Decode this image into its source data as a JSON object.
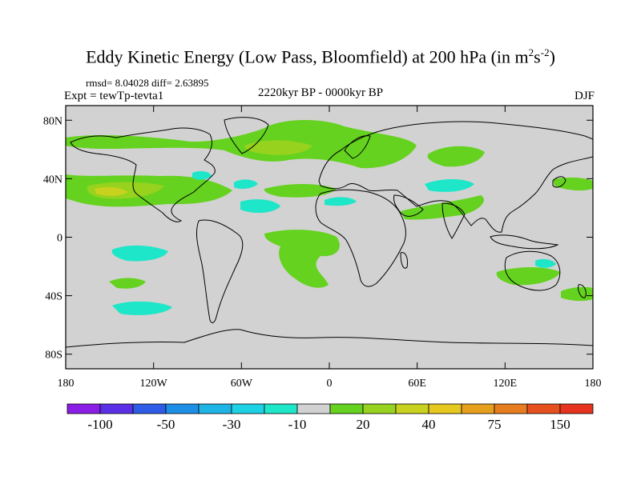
{
  "title": {
    "main": "Eddy Kinetic Energy (Low Pass, Bloomfield) at 200 hPa (in m",
    "sup1": "2",
    "s": "s",
    "sup2": "-2",
    "close": ")"
  },
  "stats": "rmsd= 8.04028 diff= 2.63895",
  "experiment": "Expt = tewTp-tevta1",
  "period": "2220kyr BP - 0000kyr BP",
  "season": "DJF",
  "axes": {
    "lat_labels": [
      "80N",
      "40N",
      "0",
      "40S",
      "80S"
    ],
    "lat_values": [
      80,
      40,
      0,
      -40,
      -80
    ],
    "lon_labels": [
      "180",
      "120W",
      "60W",
      "0",
      "60E",
      "120E",
      "180"
    ],
    "lon_values": [
      -180,
      -120,
      -60,
      0,
      60,
      120,
      180
    ]
  },
  "colorbar": {
    "colors": [
      "#8b1ee6",
      "#5a2fe6",
      "#2e5ce6",
      "#1e8fe6",
      "#1eb4e6",
      "#1ed2e6",
      "#1ee6c8",
      "#d2d2d2",
      "#64d21e",
      "#96d21e",
      "#c8d21e",
      "#e6c81e",
      "#e6a01e",
      "#e67d1e",
      "#e6501e",
      "#e6321e"
    ],
    "labels": [
      "-100",
      "-50",
      "-30",
      "-10",
      "20",
      "40",
      "75",
      "150"
    ],
    "label_after_box": [
      1,
      3,
      5,
      7,
      9,
      11,
      13,
      15
    ]
  },
  "colors": {
    "land_ocean_background": "#d2d2d2",
    "positive_low": "#64d21e",
    "positive_mid": "#96d21e",
    "positive_high": "#c8d21e",
    "negative_low": "#1ee6c8",
    "coastline": "#000000"
  }
}
